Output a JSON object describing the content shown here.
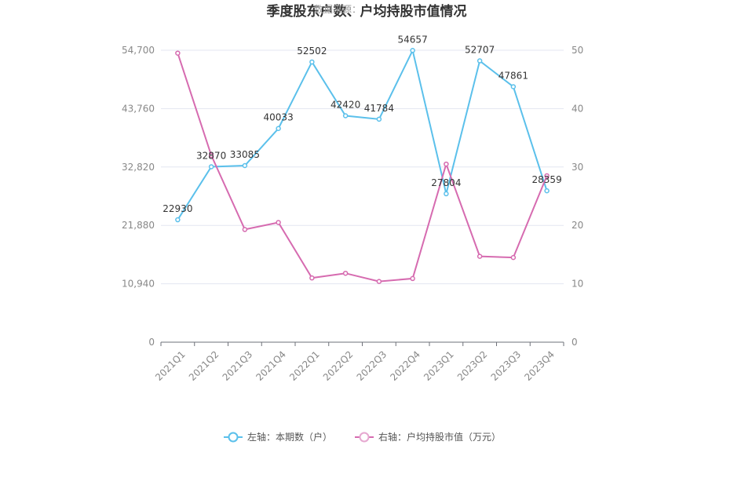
{
  "chart_data": {
    "type": "line",
    "title": "季度股东户数、户均持股市值情况",
    "watermark": "数据来源：",
    "categories": [
      "2021Q1",
      "2021Q2",
      "2021Q3",
      "2021Q4",
      "2022Q1",
      "2022Q2",
      "2022Q3",
      "2022Q4",
      "2023Q1",
      "2023Q2",
      "2023Q3",
      "2023Q4"
    ],
    "left_axis": {
      "ylim": [
        0,
        54700
      ],
      "ticks": [
        "0",
        "10,940",
        "21,880",
        "32,820",
        "43,760",
        "54,700"
      ]
    },
    "right_axis": {
      "ylim": [
        0,
        50
      ],
      "ticks": [
        "0",
        "10",
        "20",
        "30",
        "40",
        "50"
      ]
    },
    "grid": true,
    "legend_position": "bottom",
    "series": [
      {
        "name": "左轴：本期数（户）",
        "axis": "left",
        "color": "#5bc0eb",
        "values": [
          22930,
          32870,
          33085,
          40033,
          52502,
          42420,
          41784,
          54657,
          27804,
          52707,
          47861,
          28359
        ],
        "labels": [
          "22930",
          "32870",
          "33085",
          "40033",
          "52502",
          "42420",
          "41784",
          "54657",
          "27804",
          "52707",
          "47861",
          "28359"
        ]
      },
      {
        "name": "右轴：户均持股市值（万元）",
        "axis": "right",
        "color": "#d66bb0",
        "values": [
          49.5,
          32.0,
          19.3,
          20.5,
          11.0,
          11.8,
          10.4,
          10.9,
          30.5,
          14.7,
          14.5,
          28.5
        ]
      }
    ]
  }
}
